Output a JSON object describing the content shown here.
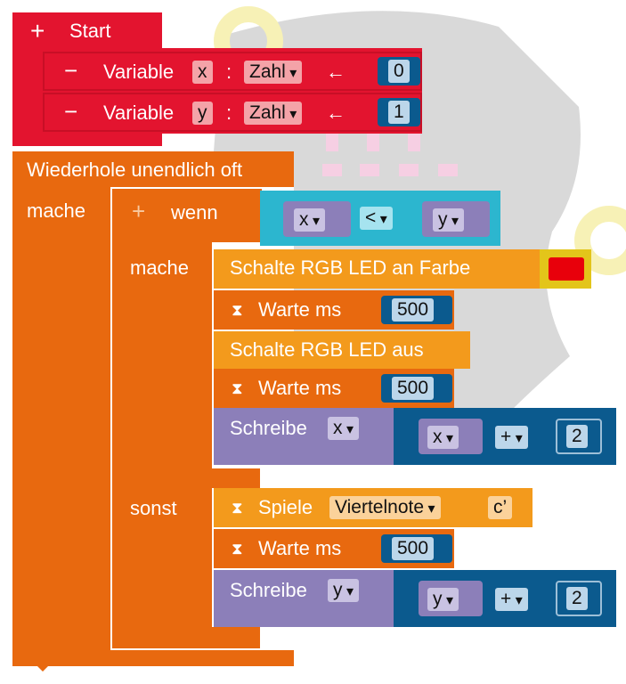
{
  "start": {
    "label": "Start",
    "plus": "+"
  },
  "vars": [
    {
      "keyword": "Variable",
      "name": "x",
      "colon": ":",
      "type": "Zahl",
      "arrow": "←",
      "value": "0",
      "minus": "−"
    },
    {
      "keyword": "Variable",
      "name": "y",
      "colon": ":",
      "type": "Zahl",
      "arrow": "←",
      "value": "1",
      "minus": "−"
    }
  ],
  "loop": {
    "label": "Wiederhole unendlich oft",
    "do_label": "mache"
  },
  "if_block": {
    "plus": "+",
    "if_label": "wenn",
    "left": "x",
    "op": "<",
    "right": "y",
    "then_label": "mache",
    "else_label": "sonst"
  },
  "then": {
    "led_on": "Schalte RGB LED an Farbe",
    "led_color": "#e8000b",
    "wait1_label": "Warte ms",
    "wait1_value": "500",
    "led_off": "Schalte RGB LED aus",
    "wait2_label": "Warte ms",
    "wait2_value": "500",
    "write_label": "Schreibe",
    "write_var": "x",
    "expr_var": "x",
    "expr_op": "+",
    "expr_num": "2"
  },
  "else": {
    "play_label": "Spiele",
    "note_len": "Viertelnote",
    "note": "c’",
    "wait_label": "Warte ms",
    "wait_value": "500",
    "write_label": "Schreibe",
    "write_var": "y",
    "expr_var": "y",
    "expr_op": "+",
    "expr_num": "2"
  },
  "icons": {
    "hourglass": "⌛",
    "hourglass_glyph": "⧗"
  },
  "colors": {
    "start_red": "#e3142f",
    "loop_orange": "#e8690f",
    "action_orange": "#f39a1c",
    "math_blue": "#0b5a8e",
    "logic_teal": "#2cb6cf",
    "var_purple": "#8c7fb9"
  }
}
